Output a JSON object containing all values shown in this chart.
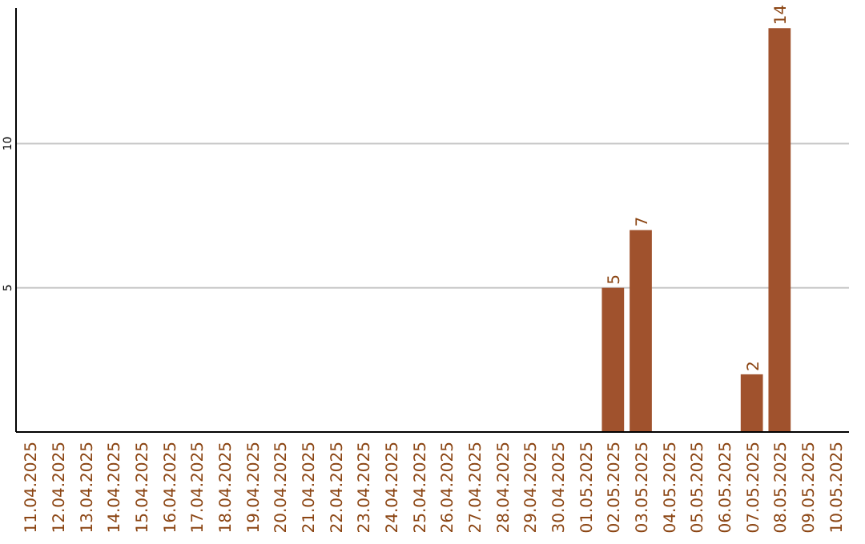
{
  "chart_data": {
    "type": "bar",
    "categories": [
      "11.04.2025",
      "12.04.2025",
      "13.04.2025",
      "14.04.2025",
      "15.04.2025",
      "16.04.2025",
      "17.04.2025",
      "18.04.2025",
      "19.04.2025",
      "20.04.2025",
      "21.04.2025",
      "22.04.2025",
      "23.04.2025",
      "24.04.2025",
      "25.04.2025",
      "26.04.2025",
      "27.04.2025",
      "28.04.2025",
      "29.04.2025",
      "30.04.2025",
      "01.05.2025",
      "02.05.2025",
      "03.05.2025",
      "04.05.2025",
      "05.05.2025",
      "06.05.2025",
      "07.05.2025",
      "08.05.2025",
      "09.05.2025",
      "10.05.2025"
    ],
    "values": [
      0,
      0,
      0,
      0,
      0,
      0,
      0,
      0,
      0,
      0,
      0,
      0,
      0,
      0,
      0,
      0,
      0,
      0,
      0,
      0,
      0,
      5,
      7,
      0,
      0,
      0,
      2,
      14,
      0,
      0
    ],
    "value_labels": [
      null,
      null,
      null,
      null,
      null,
      null,
      null,
      null,
      null,
      null,
      null,
      null,
      null,
      null,
      null,
      null,
      null,
      null,
      null,
      null,
      null,
      "5",
      "7",
      null,
      null,
      null,
      "2",
      "14",
      null,
      null
    ],
    "color": "#a0522d",
    "ylim": [
      0,
      14.7
    ],
    "yticks": [
      5,
      10
    ],
    "grid": "y"
  }
}
